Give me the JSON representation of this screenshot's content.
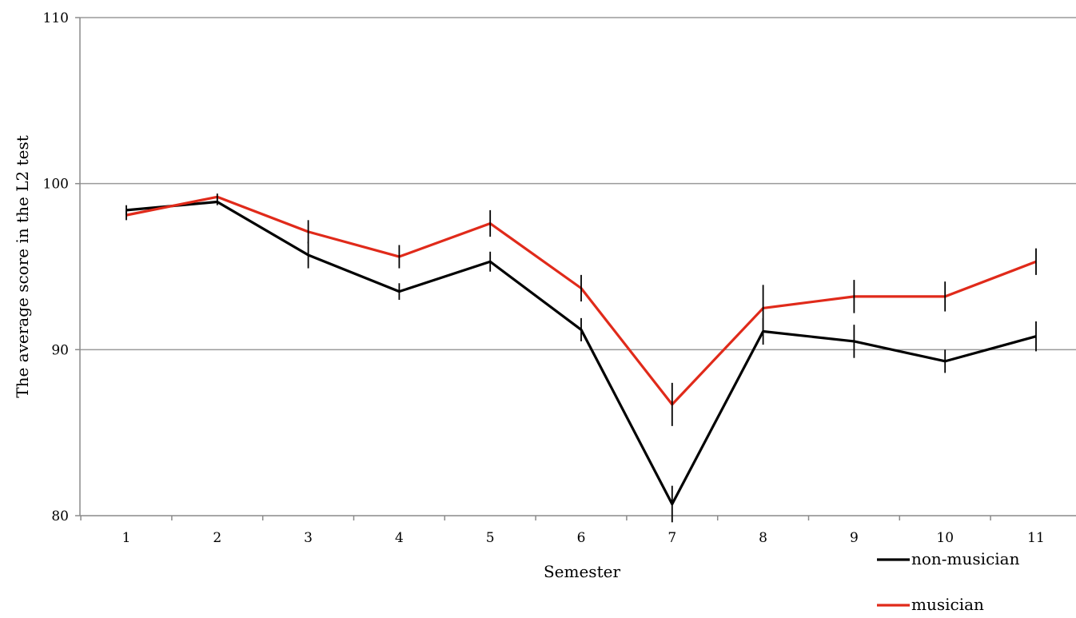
{
  "chart_data": {
    "type": "line",
    "title": "",
    "xlabel": "Semester",
    "ylabel": "The average score in the L2 test",
    "categories": [
      "1",
      "2",
      "3",
      "4",
      "5",
      "6",
      "7",
      "8",
      "9",
      "10",
      "11"
    ],
    "ylim": [
      80,
      110
    ],
    "yticks": [
      "80",
      "90",
      "100",
      "110"
    ],
    "grid": "horizontal",
    "legend_position": "bottom-right",
    "series": [
      {
        "name": "non-musician",
        "color": "#000000",
        "values": [
          98.4,
          98.9,
          95.7,
          93.5,
          95.3,
          91.2,
          80.7,
          91.1,
          90.5,
          89.3,
          90.8
        ],
        "error": [
          0.3,
          0.2,
          0.8,
          0.5,
          0.6,
          0.7,
          1.1,
          0.8,
          1.0,
          0.7,
          0.9
        ]
      },
      {
        "name": "musician",
        "color": "#e02a1a",
        "values": [
          98.1,
          99.2,
          97.1,
          95.6,
          97.6,
          93.7,
          86.7,
          92.5,
          93.2,
          93.2,
          95.3
        ],
        "error": [
          0.3,
          0.2,
          0.7,
          0.7,
          0.8,
          0.8,
          1.3,
          1.4,
          1.0,
          0.9,
          0.8
        ]
      }
    ]
  }
}
